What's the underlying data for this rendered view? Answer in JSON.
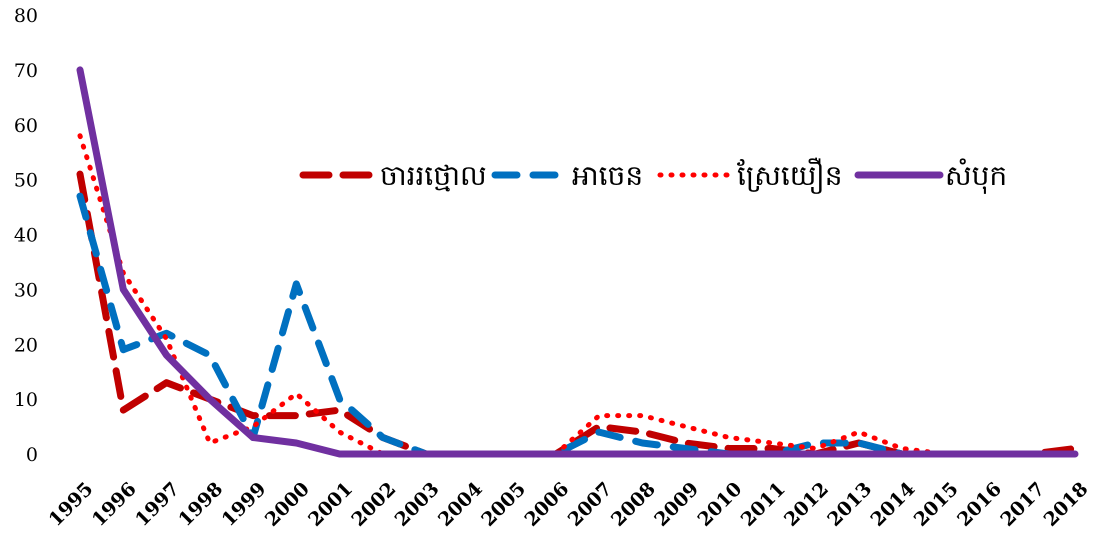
{
  "chart_data": {
    "type": "line",
    "title": "",
    "xlabel": "",
    "ylabel": "",
    "ylim": [
      0,
      80
    ],
    "yticks": [
      0,
      10,
      20,
      30,
      40,
      50,
      60,
      70,
      80
    ],
    "grid": false,
    "legend_position": "top-right",
    "categories": [
      "1995",
      "1996",
      "1997",
      "1998",
      "1999",
      "2000",
      "2001",
      "2002",
      "2003",
      "2004",
      "2005",
      "2006",
      "2007",
      "2008",
      "2009",
      "2010",
      "2011",
      "2012",
      "2013",
      "2014",
      "2015",
      "2016",
      "2017",
      "2018"
    ],
    "series": [
      {
        "name": "ចាររថ្មោល",
        "color": "#C00000",
        "dash": "long-dash",
        "values": [
          51,
          8,
          13,
          10,
          7,
          7,
          8,
          3,
          0,
          0,
          0,
          0,
          5,
          4,
          2,
          1,
          1,
          0,
          2,
          0,
          0,
          0,
          0,
          1
        ]
      },
      {
        "name": "អាចេន",
        "color": "#0070C0",
        "dash": "dash",
        "values": [
          47,
          19,
          22,
          18,
          3,
          31,
          10,
          3,
          0,
          0,
          0,
          0,
          4,
          2,
          1,
          0,
          0,
          2,
          2,
          0,
          0,
          0,
          0,
          0
        ]
      },
      {
        "name": "ស្រែយឿន",
        "color": "#FF0000",
        "dash": "dot",
        "values": [
          58,
          33,
          21,
          2,
          5,
          11,
          4,
          0,
          0,
          0,
          0,
          0,
          7,
          7,
          5,
          3,
          2,
          1,
          4,
          1,
          0,
          0,
          0,
          0
        ]
      },
      {
        "name": "សំបុក",
        "color": "#7030A0",
        "dash": "solid",
        "values": [
          70,
          30,
          18,
          10,
          3,
          2,
          0,
          0,
          0,
          0,
          0,
          0,
          0,
          0,
          0,
          0,
          0,
          0,
          0,
          0,
          0,
          0,
          0,
          0
        ]
      }
    ]
  }
}
